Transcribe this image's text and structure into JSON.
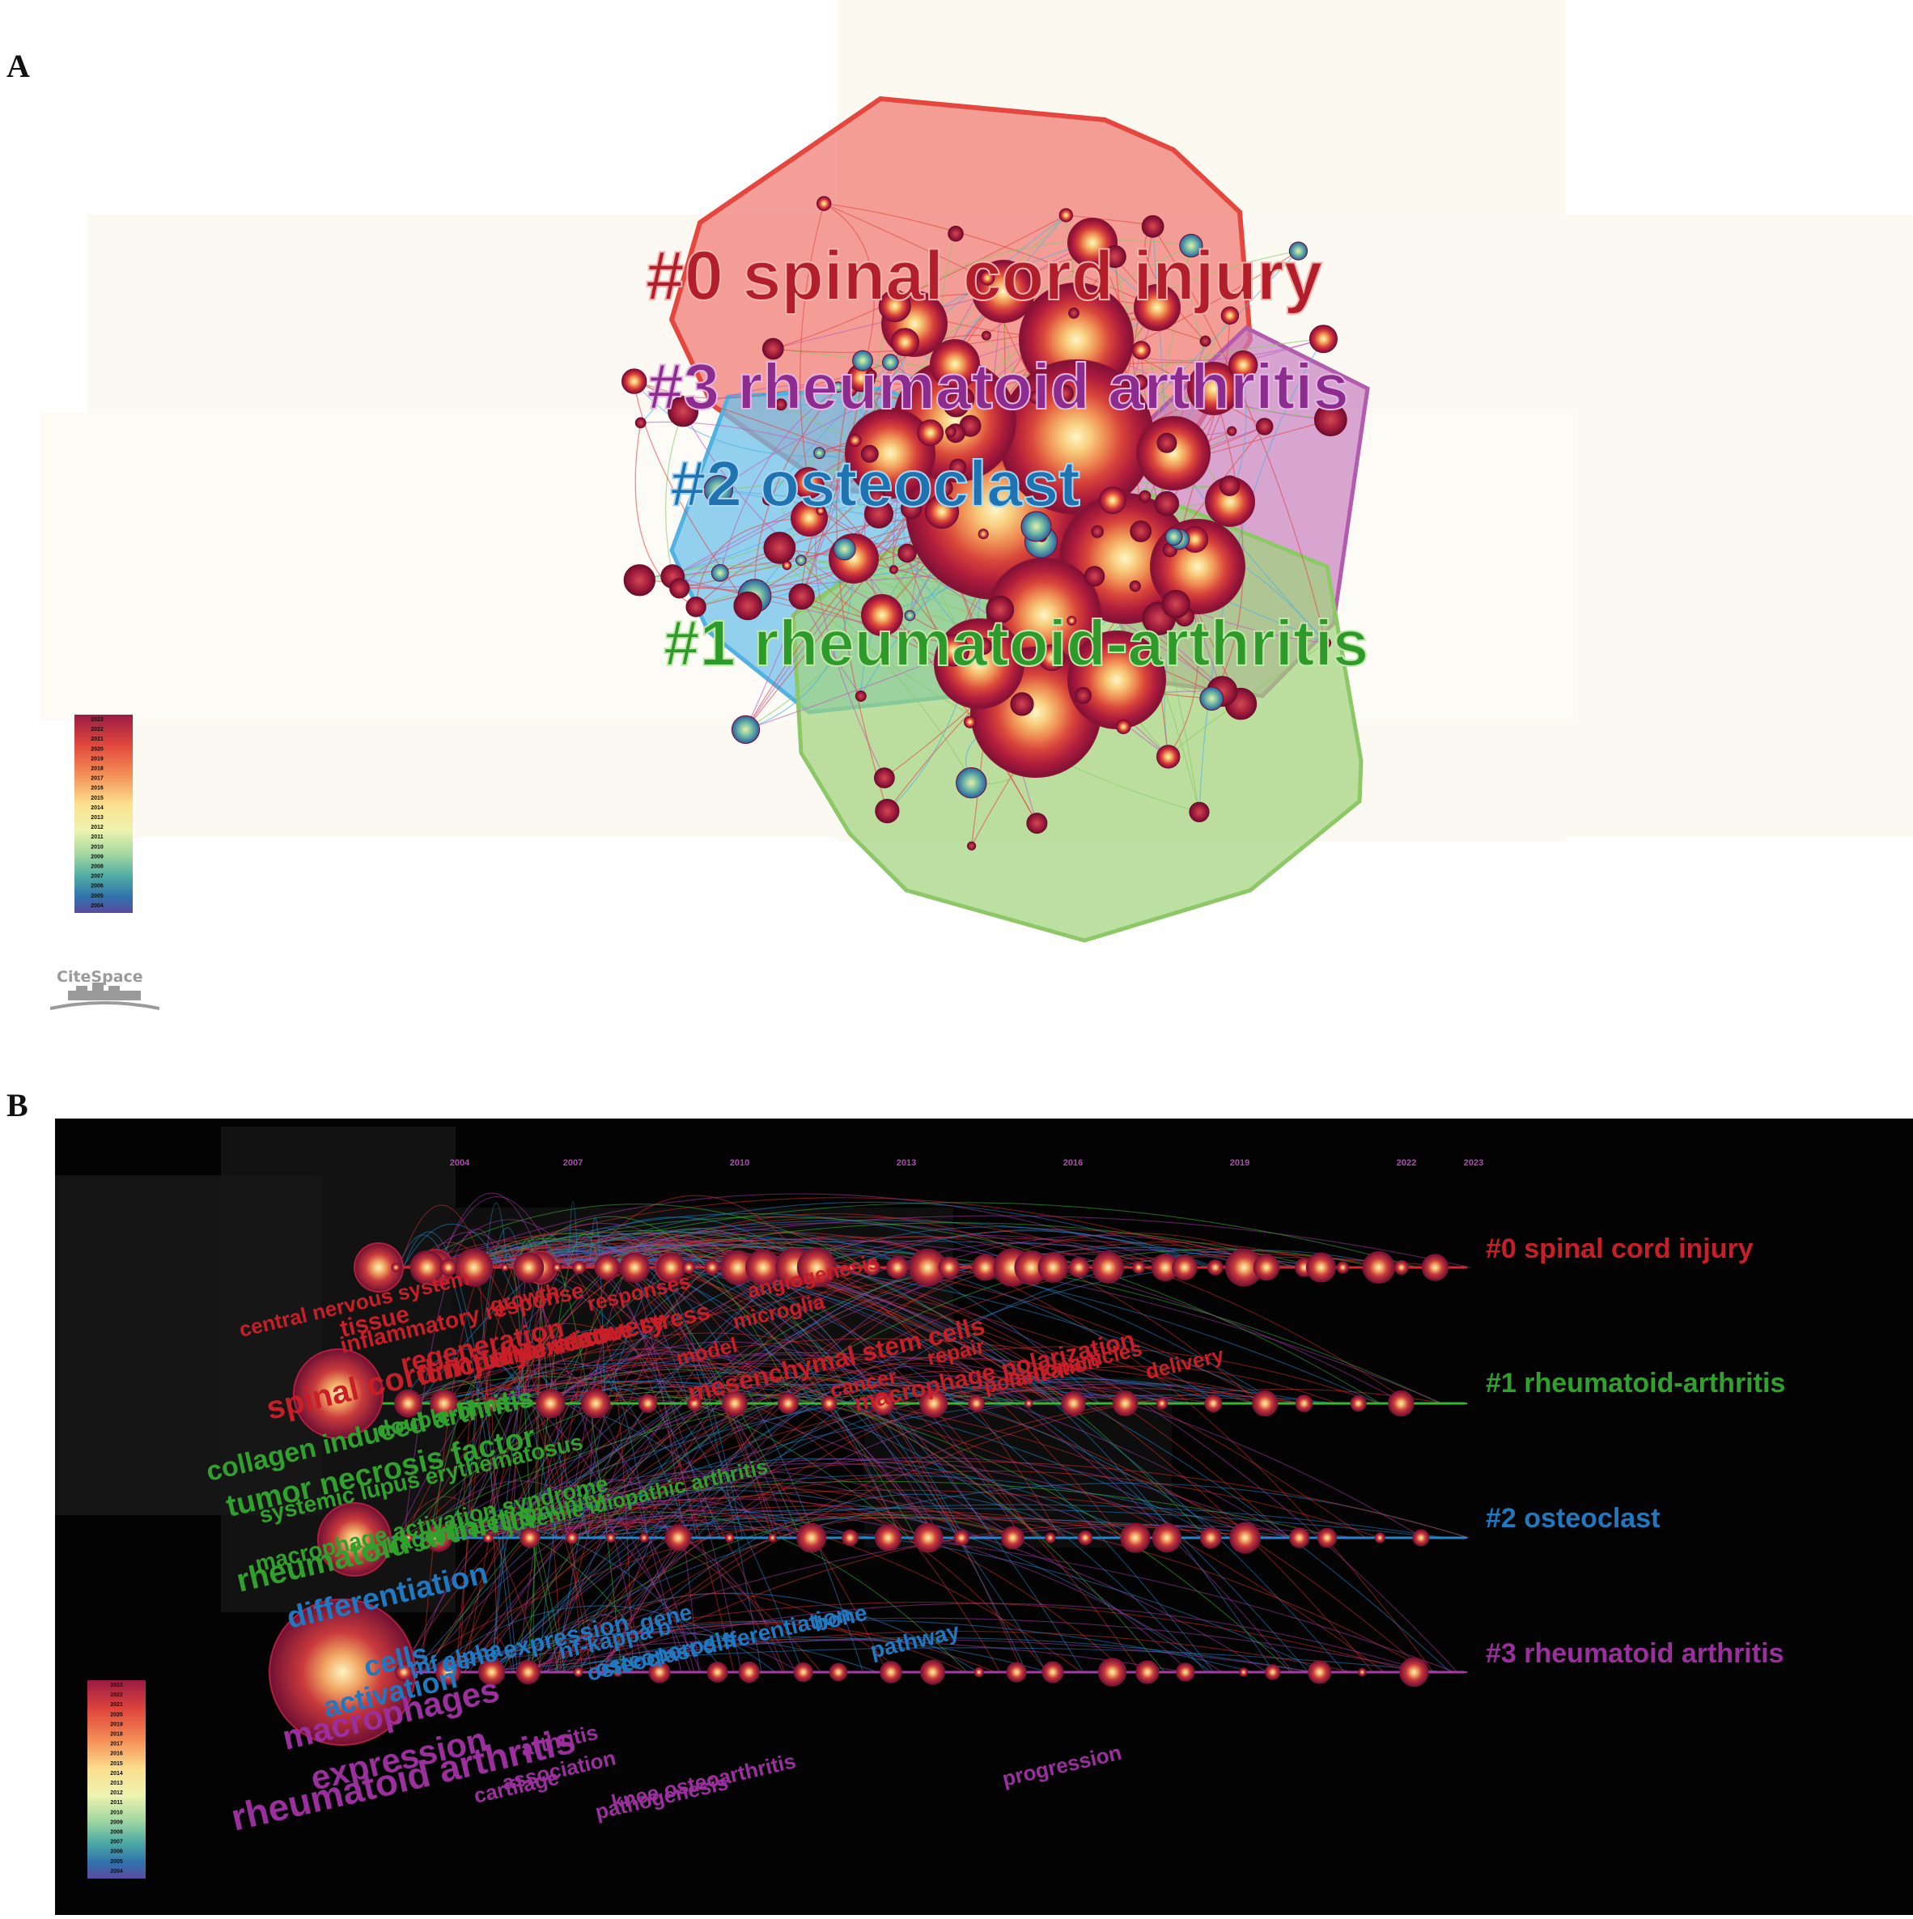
{
  "panel_a": {
    "letter": "A",
    "clusters": [
      {
        "label": "#0 spinal cord injury",
        "color": "#b21e2a",
        "hull_color": "#ee6b64"
      },
      {
        "label": "#3 rheumatoid arthritis",
        "color": "#8d2c8f",
        "hull_color": "#c77fc0"
      },
      {
        "label": "#2 osteoclast",
        "color": "#1e73b0",
        "hull_color": "#6ec2ea"
      },
      {
        "label": "#1 rheumatoid-arthritis",
        "color": "#2e9a2a",
        "hull_color": "#9fd37a"
      }
    ],
    "legend_years": [
      "2023",
      "2022",
      "2021",
      "2020",
      "2019",
      "2018",
      "2017",
      "2016",
      "2015",
      "2014",
      "2013",
      "2012",
      "2011",
      "2010",
      "2009",
      "2008",
      "2007",
      "2006",
      "2005",
      "2004"
    ],
    "logo_text": "CiteSpace"
  },
  "panel_b": {
    "letter": "B",
    "years": [
      "2004",
      "2007",
      "2010",
      "2013",
      "2016",
      "2019",
      "2022",
      "2023"
    ],
    "clusters": [
      {
        "label": "#0 spinal cord injury",
        "color": "#c81e28"
      },
      {
        "label": "#1 rheumatoid-arthritis",
        "color": "#2fa12c"
      },
      {
        "label": "#2 osteoclast",
        "color": "#1f78c0"
      },
      {
        "label": "#3 rheumatoid arthritis",
        "color": "#9a2f9d"
      }
    ],
    "keywords": {
      "c0": [
        "central nervous system",
        "tissue",
        "inflammatory response",
        "growth",
        "responses",
        "angiogenesis",
        "regeneration",
        "functional recovery",
        "proliferation",
        "oxidative stress",
        "model",
        "microglia",
        "spinal cord injury",
        "mesenchymal stem cells",
        "cancer",
        "repair",
        "macrophage polarization",
        "polarization",
        "nanoparticles",
        "delivery"
      ],
      "c1": [
        "collagen induced arthritis",
        "double-blind",
        "tumor necrosis factor",
        "systemic lupus erythematosus",
        "macrophage activation syndrome",
        "collagen",
        "innate immunity",
        "juvenile idiopathic arthritis",
        "rheumatoid arthritis"
      ],
      "c2": [
        "differentiation",
        "cells",
        "activation",
        "tnf alpha",
        "gene expression",
        "gene",
        "nf-kappa b",
        "osteoporosis",
        "osteoclast differentiation",
        "bone",
        "pathway"
      ],
      "c3": [
        "macrophages",
        "expression",
        "rheumatoid arthritis",
        "arthritis",
        "cartilage",
        "association",
        "pathogenesis",
        "knee osteoarthritis",
        "progression"
      ]
    },
    "legend_years": [
      "2023",
      "2022",
      "2021",
      "2020",
      "2019",
      "2018",
      "2017",
      "2016",
      "2015",
      "2014",
      "2013",
      "2012",
      "2011",
      "2010",
      "2009",
      "2008",
      "2007",
      "2006",
      "2005",
      "2004"
    ]
  }
}
